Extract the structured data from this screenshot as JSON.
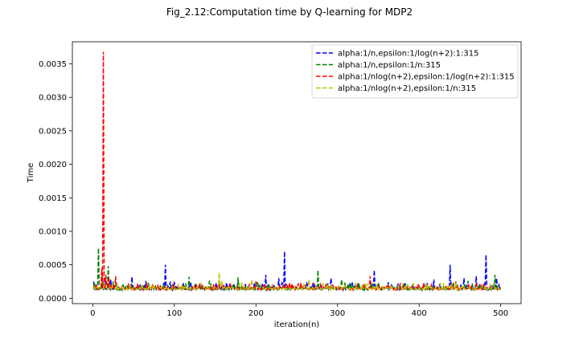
{
  "chart_data": {
    "type": "line",
    "title": "Fig_2.12:Computation time by Q-learning for MDP2",
    "xlabel": "iteration(n)",
    "ylabel": "Time",
    "xlim": [
      -25,
      525
    ],
    "ylim": [
      -8e-05,
      0.00383
    ],
    "x_ticks": [
      0,
      100,
      200,
      300,
      400,
      500
    ],
    "y_ticks": [
      0.0,
      0.0005,
      0.001,
      0.0015,
      0.002,
      0.0025,
      0.003,
      0.0035
    ],
    "y_tick_labels": [
      "0.0000",
      "0.0005",
      "0.0010",
      "0.0015",
      "0.0020",
      "0.0025",
      "0.0030",
      "0.0035"
    ],
    "x_tick_labels": [
      "0",
      "100",
      "200",
      "300",
      "400",
      "500"
    ],
    "legend_position": "top-right",
    "grid": false,
    "n_points": 500,
    "baseline": 0.00015,
    "series": [
      {
        "name": "alpha:1/n,epsilon:1/log(n+2):1:315",
        "color": "#0000ff",
        "spikes": [
          [
            1,
            0.00025
          ],
          [
            15,
            0.0003
          ],
          [
            22,
            0.00028
          ],
          [
            48,
            0.00032
          ],
          [
            65,
            0.00026
          ],
          [
            89,
            0.0005
          ],
          [
            95,
            0.00025
          ],
          [
            120,
            0.00024
          ],
          [
            145,
            0.00022
          ],
          [
            178,
            0.00024
          ],
          [
            212,
            0.00035
          ],
          [
            228,
            0.0003
          ],
          [
            235,
            0.0007
          ],
          [
            262,
            0.00024
          ],
          [
            292,
            0.0003
          ],
          [
            318,
            0.00024
          ],
          [
            345,
            0.00042
          ],
          [
            362,
            0.00024
          ],
          [
            418,
            0.00028
          ],
          [
            438,
            0.0005
          ],
          [
            455,
            0.0003
          ],
          [
            470,
            0.00033
          ],
          [
            482,
            0.00065
          ],
          [
            495,
            0.0003
          ]
        ]
      },
      {
        "name": "alpha:1/n,epsilon:1/n:315",
        "color": "#008000",
        "spikes": [
          [
            7,
            0.00075
          ],
          [
            12,
            0.0003
          ],
          [
            19,
            0.00048
          ],
          [
            25,
            0.00025
          ],
          [
            118,
            0.00032
          ],
          [
            143,
            0.00026
          ],
          [
            178,
            0.00031
          ],
          [
            202,
            0.00025
          ],
          [
            276,
            0.00042
          ],
          [
            305,
            0.00028
          ],
          [
            460,
            0.00026
          ],
          [
            493,
            0.00035
          ]
        ]
      },
      {
        "name": "alpha:1/nlog(n+2),epsilon:1/log(n+2):1:315",
        "color": "#ff0000",
        "spikes": [
          [
            11,
            0.00045
          ],
          [
            13,
            0.00368
          ],
          [
            16,
            0.00035
          ],
          [
            20,
            0.0003
          ],
          [
            28,
            0.00033
          ],
          [
            55,
            0.00022
          ],
          [
            110,
            0.0002
          ],
          [
            200,
            0.00025
          ],
          [
            210,
            0.00022
          ],
          [
            255,
            0.00023
          ],
          [
            340,
            0.00033
          ],
          [
            350,
            0.0002
          ],
          [
            400,
            0.0002
          ],
          [
            445,
            0.00025
          ],
          [
            480,
            0.00022
          ]
        ]
      },
      {
        "name": "alpha:1/nlog(n+2),epsilon:1/n:315",
        "color": "#bfbf00",
        "spikes": [
          [
            30,
            0.00022
          ],
          [
            75,
            0.0002
          ],
          [
            155,
            0.00038
          ],
          [
            158,
            0.00026
          ],
          [
            195,
            0.00028
          ],
          [
            265,
            0.00028
          ],
          [
            322,
            0.00023
          ],
          [
            380,
            0.00022
          ],
          [
            410,
            0.00022
          ]
        ]
      }
    ]
  }
}
